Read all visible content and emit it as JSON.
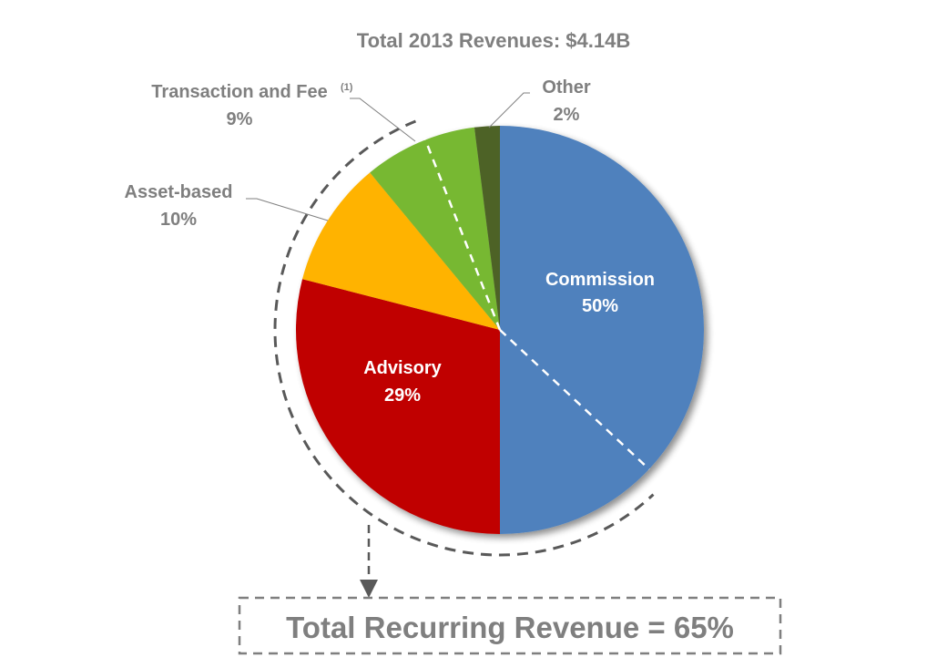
{
  "chart_data": {
    "type": "pie",
    "title": "Total 2013 Revenues: $4.14B",
    "slices": [
      {
        "label": "Commission",
        "value": 50,
        "value_label": "50%",
        "color": "#4F81BD"
      },
      {
        "label": "Advisory",
        "value": 29,
        "value_label": "29%",
        "color": "#C00000"
      },
      {
        "label": "Asset-based",
        "value": 10,
        "value_label": "10%",
        "color": "#FFB300"
      },
      {
        "label": "Transaction and Fee",
        "footnote": "(1)",
        "value": 9,
        "value_label": "9%",
        "color": "#77B833"
      },
      {
        "label": "Other",
        "value": 2,
        "value_label": "2%",
        "color": "#4E6228"
      }
    ],
    "annotation": "Total Recurring Revenue = 65%",
    "label_color": "#7F7F7F"
  }
}
